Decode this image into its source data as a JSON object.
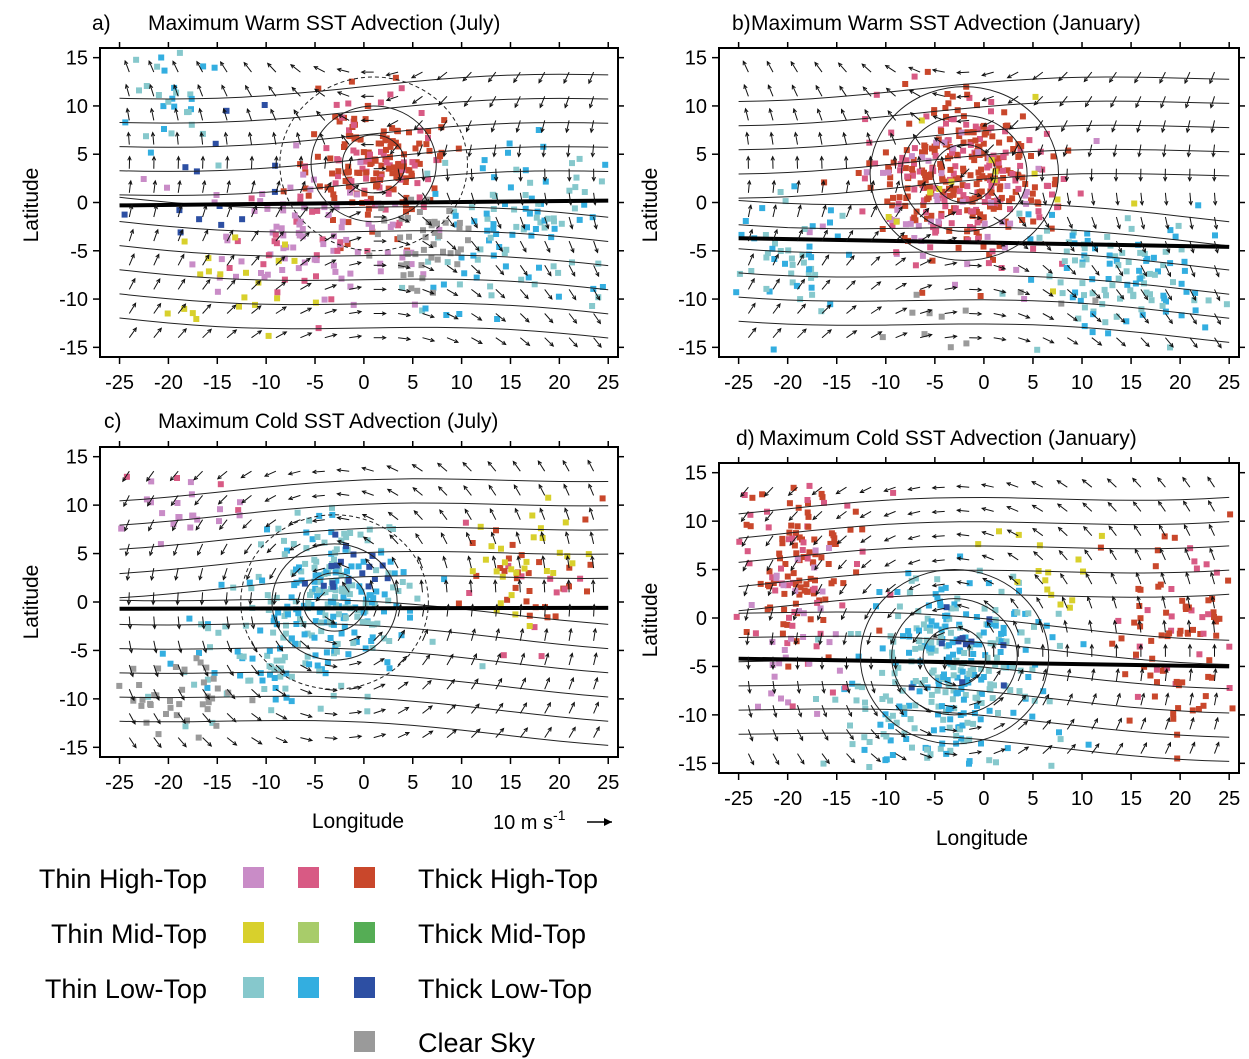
{
  "figure": {
    "scale_label": "10 m s",
    "scale_superscript": "-1",
    "legend": {
      "rows": [
        {
          "left": "Thin High-Top",
          "right": "Thick High-Top",
          "colors": [
            "#c98cc7",
            "#d85a84",
            "#c9472b"
          ]
        },
        {
          "left": "Thin Mid-Top",
          "right": "Thick Mid-Top",
          "colors": [
            "#d8d02c",
            "#a8cc6a",
            "#55ad55"
          ]
        },
        {
          "left": "Thin Low-Top",
          "right": "Thick Low-Top",
          "colors": [
            "#86c8cc",
            "#33aee0",
            "#2d4fa3"
          ]
        }
      ],
      "clear_sky": {
        "label": "Clear Sky",
        "color": "#9a9a9a"
      }
    }
  },
  "chart_data": [
    {
      "type": "scatter",
      "panel": "a)",
      "title": "Maximum Warm SST Advection (July)",
      "xlabel": "",
      "ylabel": "Latitude",
      "xlim": [
        -27,
        26
      ],
      "ylim": [
        -16,
        16
      ],
      "xticks": [
        -25,
        -20,
        -15,
        -10,
        -5,
        0,
        5,
        10,
        15,
        20,
        25
      ],
      "yticks": [
        15,
        10,
        5,
        0,
        -5,
        -10,
        -15
      ],
      "grid": false,
      "thick_line": [
        [
          -25,
          -0.3
        ],
        [
          25,
          0.2
        ]
      ],
      "clusters": [
        {
          "category": "Thick High-Top",
          "center": [
            1,
            4
          ],
          "spread": [
            6,
            5
          ],
          "count": 190
        },
        {
          "category": "Thin High-Top",
          "center": [
            -6,
            -4
          ],
          "spread": [
            9,
            6
          ],
          "count": 110
        },
        {
          "category": "Thin Low-Top",
          "center": [
            16,
            -2
          ],
          "spread": [
            9,
            8
          ],
          "count": 110
        },
        {
          "category": "Thin Low-Top",
          "center": [
            -20,
            10
          ],
          "spread": [
            5,
            4
          ],
          "count": 30
        },
        {
          "category": "Clear Sky",
          "center": [
            6,
            -4
          ],
          "spread": [
            4,
            4
          ],
          "count": 45
        },
        {
          "category": "Thin Mid-Top",
          "center": [
            -14,
            -8
          ],
          "spread": [
            7,
            4
          ],
          "count": 22
        },
        {
          "category": "Thick Low-Top",
          "center": [
            -14,
            2
          ],
          "spread": [
            6,
            6
          ],
          "count": 14
        }
      ]
    },
    {
      "type": "scatter",
      "panel": "b)",
      "title": "Maximum Warm SST Advection (January)",
      "xlabel": "",
      "ylabel": "Latitude",
      "xlim": [
        -27,
        26
      ],
      "ylim": [
        -16,
        16
      ],
      "xticks": [
        -25,
        -20,
        -15,
        -10,
        -5,
        0,
        5,
        10,
        15,
        20,
        25
      ],
      "yticks": [
        15,
        10,
        5,
        0,
        -5,
        -10,
        -15
      ],
      "grid": false,
      "thick_line": [
        [
          -25,
          -3.7
        ],
        [
          25,
          -4.6
        ]
      ],
      "clusters": [
        {
          "category": "Thick High-Top",
          "center": [
            -2,
            3
          ],
          "spread": [
            7,
            6
          ],
          "count": 320
        },
        {
          "category": "Thin High-Top",
          "center": [
            -2,
            0
          ],
          "spread": [
            8,
            8
          ],
          "count": 70
        },
        {
          "category": "Thin Low-Top",
          "center": [
            15,
            -8
          ],
          "spread": [
            9,
            5
          ],
          "count": 120
        },
        {
          "category": "Thin Low-Top",
          "center": [
            -20,
            -6
          ],
          "spread": [
            5,
            6
          ],
          "count": 50
        },
        {
          "category": "Thin Mid-Top",
          "center": [
            0,
            2
          ],
          "spread": [
            12,
            8
          ],
          "count": 14
        },
        {
          "category": "Clear Sky",
          "center": [
            0,
            -12
          ],
          "spread": [
            14,
            3
          ],
          "count": 12
        }
      ]
    },
    {
      "type": "scatter",
      "panel": "c)",
      "title": "Maximum Cold SST Advection (July)",
      "xlabel": "Longitude",
      "ylabel": "Latitude",
      "xlim": [
        -27,
        26
      ],
      "ylim": [
        -16,
        16
      ],
      "xticks": [
        -25,
        -20,
        -15,
        -10,
        -5,
        0,
        5,
        10,
        15,
        20,
        25
      ],
      "yticks": [
        15,
        10,
        5,
        0,
        -5,
        -10,
        -15
      ],
      "grid": false,
      "thick_line": [
        [
          -25,
          -0.7
        ],
        [
          25,
          -0.6
        ]
      ],
      "clusters": [
        {
          "category": "Thin Low-Top",
          "center": [
            -3,
            0
          ],
          "spread": [
            7,
            6
          ],
          "count": 230
        },
        {
          "category": "Thin Low-Top",
          "center": [
            -12,
            -7
          ],
          "spread": [
            8,
            5
          ],
          "count": 60
        },
        {
          "category": "Thick Low-Top",
          "center": [
            -3,
            3
          ],
          "spread": [
            4,
            3
          ],
          "count": 18
        },
        {
          "category": "Clear Sky",
          "center": [
            -18,
            -10
          ],
          "spread": [
            6,
            4
          ],
          "count": 40
        },
        {
          "category": "Thick High-Top",
          "center": [
            17,
            3
          ],
          "spread": [
            6,
            5
          ],
          "count": 40
        },
        {
          "category": "Thin High-Top",
          "center": [
            -18,
            10
          ],
          "spread": [
            6,
            3
          ],
          "count": 25
        },
        {
          "category": "Thin Mid-Top",
          "center": [
            15,
            4
          ],
          "spread": [
            8,
            5
          ],
          "count": 30
        }
      ]
    },
    {
      "type": "scatter",
      "panel": "d)",
      "title": "Maximum Cold SST Advection (January)",
      "xlabel": "Longitude",
      "ylabel": "Latitude",
      "xlim": [
        -27,
        26
      ],
      "ylim": [
        -16,
        16
      ],
      "xticks": [
        -25,
        -20,
        -15,
        -10,
        -5,
        0,
        5,
        10,
        15,
        20,
        25
      ],
      "yticks": [
        15,
        10,
        5,
        0,
        -5,
        -10,
        -15
      ],
      "grid": false,
      "thick_line": [
        [
          -25,
          -4.2
        ],
        [
          25,
          -5.0
        ]
      ],
      "clusters": [
        {
          "category": "Thin Low-Top",
          "center": [
            -3,
            -4
          ],
          "spread": [
            8,
            7
          ],
          "count": 260
        },
        {
          "category": "Thin Low-Top",
          "center": [
            -5,
            -12
          ],
          "spread": [
            9,
            3
          ],
          "count": 60
        },
        {
          "category": "Thick High-Top",
          "center": [
            -19,
            5
          ],
          "spread": [
            5,
            8
          ],
          "count": 120
        },
        {
          "category": "Thick High-Top",
          "center": [
            20,
            -2
          ],
          "spread": [
            5,
            8
          ],
          "count": 90
        },
        {
          "category": "Thin High-Top",
          "center": [
            -20,
            0
          ],
          "spread": [
            5,
            8
          ],
          "count": 40
        },
        {
          "category": "Thin Mid-Top",
          "center": [
            5,
            4
          ],
          "spread": [
            6,
            5
          ],
          "count": 16
        },
        {
          "category": "Thick Low-Top",
          "center": [
            -3,
            -3
          ],
          "spread": [
            4,
            4
          ],
          "count": 12
        }
      ]
    }
  ]
}
